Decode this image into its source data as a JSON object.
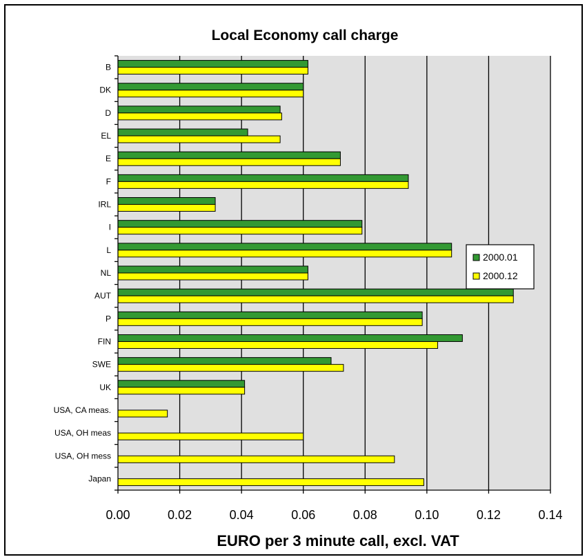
{
  "chart_data": {
    "type": "bar",
    "orientation": "horizontal",
    "title": "Local Economy call charge",
    "xlabel": "EURO per 3 minute call, excl. VAT",
    "ylabel": "",
    "xlim": [
      0,
      0.14
    ],
    "xticks": [
      "0.00",
      "0.02",
      "0.04",
      "0.06",
      "0.08",
      "0.10",
      "0.12",
      "0.14"
    ],
    "grid": true,
    "legend_position": "right",
    "categories": [
      "B",
      "DK",
      "D",
      "EL",
      "E",
      "F",
      "IRL",
      "I",
      "L",
      "NL",
      "AUT",
      "P",
      "FIN",
      "SWE",
      "UK",
      "USA, CA meas.",
      "USA, OH meas",
      "USA, OH mess",
      "Japan"
    ],
    "series": [
      {
        "name": "2000.01",
        "color": "#339933",
        "values": [
          0.0615,
          0.06,
          0.0525,
          0.042,
          0.072,
          0.094,
          0.0315,
          0.079,
          0.108,
          0.0615,
          0.128,
          0.0985,
          0.1115,
          0.069,
          0.041,
          null,
          null,
          null,
          null
        ]
      },
      {
        "name": "2000.12",
        "color": "#ffff00",
        "values": [
          0.0615,
          0.06,
          0.053,
          0.0525,
          0.072,
          0.094,
          0.0315,
          0.079,
          0.108,
          0.0615,
          0.128,
          0.0985,
          0.1035,
          0.073,
          0.041,
          0.016,
          0.06,
          0.0895,
          0.099
        ]
      }
    ]
  }
}
